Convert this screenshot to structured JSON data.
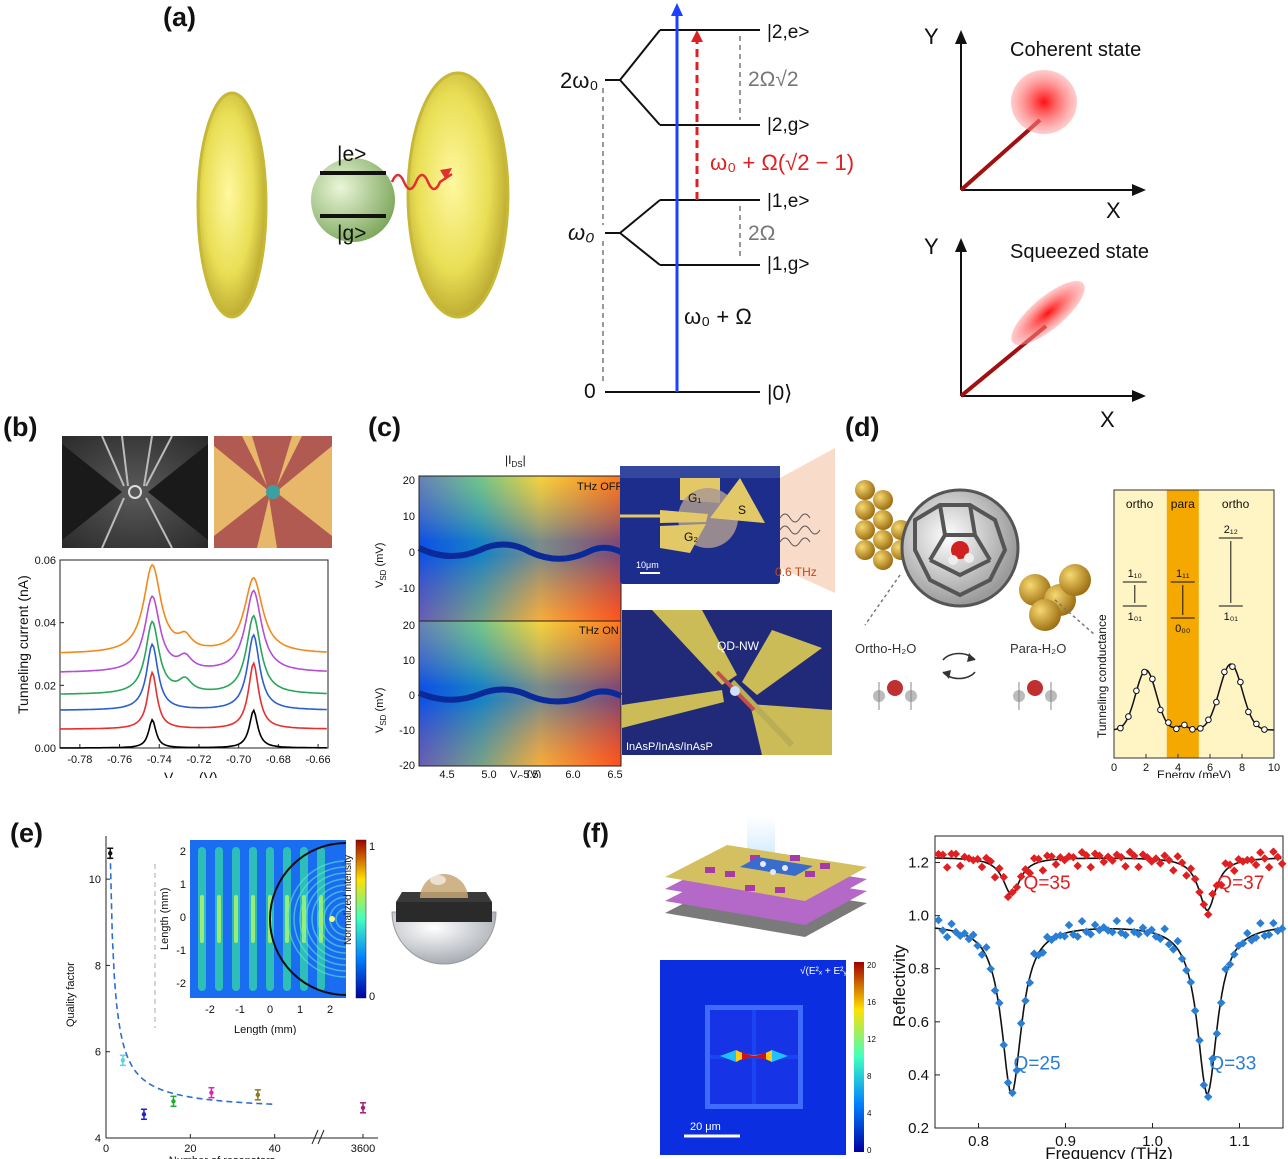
{
  "labels": {
    "a": "(a)",
    "b": "(b)",
    "c": "(c)",
    "d": "(d)",
    "e": "(e)",
    "f": "(f)"
  },
  "panel_a": {
    "atom_excited": "|e>",
    "atom_ground": "|g>",
    "level_2e": "|2,e>",
    "level_2g": "|2,g>",
    "level_1e": "|1,e>",
    "level_1g": "|1,g>",
    "level_0": "|0⟩",
    "energy_2w0": "2ω₀",
    "energy_w0": "ω₀",
    "energy_0": "0",
    "split_2": "2Ω√2",
    "split_1": "2Ω",
    "transition_red": "ω₀ + Ω(√2 − 1)",
    "transition_blue": "ω₀ + Ω",
    "coherent_title": "Coherent state",
    "squeezed_title": "Squeezed state",
    "axis_x": "X",
    "axis_y": "Y"
  },
  "panel_b": {
    "chart_data": {
      "type": "line",
      "xlabel": "V",
      "xlabel_sub": "Gate",
      "xlabel_unit": " (V)",
      "ylabel": "Tunneling current (nA)",
      "xlim": [
        -0.79,
        -0.655
      ],
      "ylim": [
        0.0,
        0.06
      ],
      "xticks": [
        "-0.78",
        "-0.76",
        "-0.74",
        "-0.72",
        "-0.70",
        "-0.68",
        "-0.66"
      ],
      "yticks": [
        "0.00",
        "0.02",
        "0.04",
        "0.06"
      ],
      "series": [
        {
          "color": "#000000",
          "baseline": 0.0,
          "peaks": [
            0.009,
            0.012
          ]
        },
        {
          "color": "#e53030",
          "baseline": 0.006,
          "peaks": [
            0.024,
            0.027
          ]
        },
        {
          "color": "#2b5fcf",
          "baseline": 0.012,
          "peaks": [
            0.033,
            0.036
          ]
        },
        {
          "color": "#2aa55a",
          "baseline": 0.017,
          "peaks": [
            0.04,
            0.042
          ]
        },
        {
          "color": "#b44ed6",
          "baseline": 0.024,
          "peaks": [
            0.048,
            0.05
          ]
        },
        {
          "color": "#f08a1c",
          "baseline": 0.03,
          "peaks": [
            0.058,
            0.054
          ]
        }
      ]
    }
  },
  "panel_c": {
    "title": "|I",
    "title_sub": "DS",
    "title_end": "|",
    "top_label": "THz OFF",
    "bottom_label": "THz ON",
    "ylabel": "V",
    "ylabel_sub": "SD",
    "ylabel_unit": " (mV)",
    "xlabel": "V",
    "xlabel_sub": "G",
    "xlabel_unit": " (V)",
    "xticks": [
      "4.5",
      "5.0",
      "5.5",
      "6.0",
      "6.5"
    ],
    "yticks_top": [
      "20",
      "10",
      "0",
      "-10"
    ],
    "yticks_bottom": [
      "20",
      "10",
      "0",
      "-10",
      "-20"
    ],
    "device_g1": "G₁",
    "device_g2": "G₂",
    "device_s": "S",
    "scale": "10μm",
    "frequency": "0.6 THz",
    "nw_label": "QD-NW",
    "material": "InAsP/InAs/InAsP"
  },
  "panel_d": {
    "ortho_left": "ortho",
    "para": "para",
    "ortho_right": "ortho",
    "lvl_110": "1₁₀",
    "lvl_101a": "1₀₁",
    "lvl_111": "1₁₁",
    "lvl_000": "0₀₀",
    "lvl_212": "2₁₂",
    "lvl_101b": "1₀₁",
    "ylabel": "Tunneling conductance",
    "xlabel": "Energy (meV)",
    "xticks": [
      "0",
      "2",
      "4",
      "6",
      "8",
      "10"
    ],
    "ortho_water": "Ortho-H₂O",
    "para_water": "Para-H₂O"
  },
  "panel_e": {
    "chart_data": {
      "type": "scatter",
      "xlabel": "Number of resonators",
      "ylabel": "Quality factor",
      "xticks": [
        "0",
        "20",
        "40",
        "3600"
      ],
      "yticks": [
        "4",
        "6",
        "8",
        "10"
      ],
      "points": [
        {
          "x": 1,
          "y": 10.6,
          "color": "#111111"
        },
        {
          "x": 4,
          "y": 5.8,
          "color": "#5fd0e8"
        },
        {
          "x": 9,
          "y": 4.55,
          "color": "#2222cc"
        },
        {
          "x": 16,
          "y": 4.85,
          "color": "#22aa33"
        },
        {
          "x": 25,
          "y": 5.05,
          "color": "#e020c0"
        },
        {
          "x": 36,
          "y": 5.0,
          "color": "#8a7a20"
        },
        {
          "x": 3600,
          "y": 4.7,
          "color": "#a0207a"
        }
      ]
    },
    "inset_xlabel": "Length (mm)",
    "inset_ylabel": "Length (mm)",
    "inset_xticks": [
      "-2",
      "-1",
      "0",
      "1",
      "2"
    ],
    "inset_yticks": [
      "2",
      "1",
      "0",
      "-1",
      "-2"
    ],
    "colorbar_label": "Normalized intensity",
    "colorbar_max": "1",
    "colorbar_min": "0"
  },
  "panel_f": {
    "chart_data": {
      "type": "line",
      "xlabel": "Frequency (THz)",
      "ylabel": "Reflectivity",
      "xlim": [
        0.75,
        1.15
      ],
      "ylim": [
        0.2,
        1.3
      ],
      "xticks": [
        "0.8",
        "0.9",
        "1.0",
        "1.1"
      ],
      "yticks": [
        "0.2",
        "0.4",
        "0.6",
        "0.8",
        "1.0",
        "1.2"
      ],
      "series": [
        {
          "color": "#e02020",
          "baseline": 1.22,
          "dips": [
            {
              "f": 0.838,
              "min": 1.08,
              "q": "Q=35"
            },
            {
              "f": 1.063,
              "min": 1.02,
              "q": "Q=37"
            }
          ]
        },
        {
          "color": "#2a7fd4",
          "baseline": 0.97,
          "dips": [
            {
              "f": 0.838,
              "min": 0.33,
              "q": "Q=25"
            },
            {
              "f": 1.063,
              "min": 0.33,
              "q": "Q=33"
            }
          ]
        }
      ]
    },
    "field_formula": "√(E²ₓ + E²ᵧ)",
    "scale": "20 μm",
    "colorbar_ticks": [
      "20",
      "16",
      "12",
      "8",
      "4",
      "0"
    ]
  }
}
